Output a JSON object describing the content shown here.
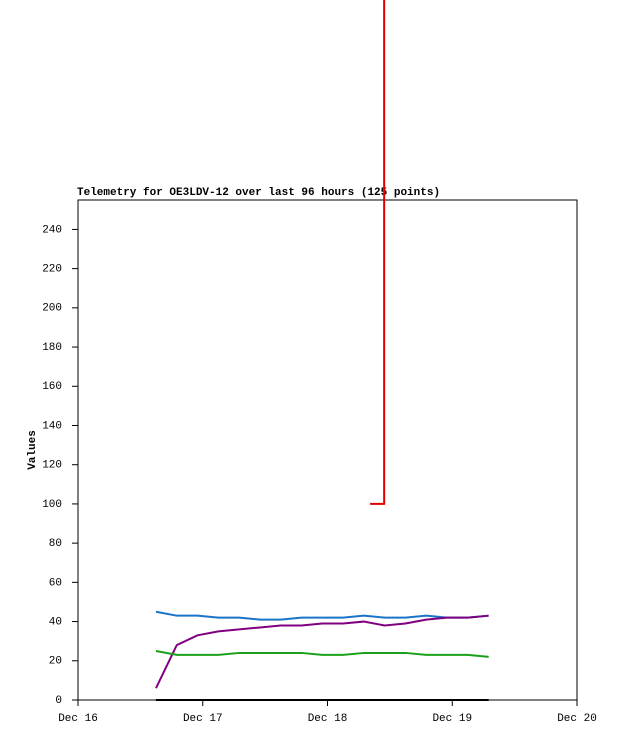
{
  "chart_data": {
    "type": "line",
    "title": "Telemetry for OE3LDV-12 over last 96 hours (125 points)",
    "y_label": "Values",
    "xlim": [
      0,
      96
    ],
    "xticks": [
      {
        "value": 0,
        "label": "Dec 16"
      },
      {
        "value": 24,
        "label": "Dec 17"
      },
      {
        "value": 48,
        "label": "Dec 18"
      },
      {
        "value": 72,
        "label": "Dec 19"
      },
      {
        "value": 96,
        "label": "Dec 20"
      }
    ],
    "ylim": [
      0,
      255
    ],
    "yticks": [
      0,
      20,
      40,
      60,
      80,
      100,
      120,
      140,
      160,
      180,
      200,
      220,
      240
    ],
    "x": [
      15,
      19,
      23,
      27,
      31,
      35,
      39,
      43,
      47,
      51,
      55,
      59,
      63,
      67,
      71,
      75,
      79
    ],
    "series": [
      {
        "color": "#1a74c8",
        "values": [
          45,
          43,
          43,
          42,
          42,
          41,
          41,
          42,
          42,
          42,
          43,
          42,
          42,
          43,
          42,
          42,
          43
        ]
      },
      {
        "color": "#800080",
        "values": [
          6,
          28,
          33,
          35,
          36,
          37,
          38,
          38,
          39,
          39,
          40,
          38,
          39,
          41,
          42,
          42,
          43
        ]
      },
      {
        "color": "#1aa01a",
        "values": [
          25,
          23,
          23,
          23,
          24,
          24,
          24,
          24,
          23,
          23,
          24,
          24,
          24,
          23,
          23,
          23,
          22
        ]
      },
      {
        "color": "#000000",
        "values": [
          0,
          0,
          0,
          0,
          0,
          0,
          0,
          0,
          0,
          0,
          0,
          0,
          0,
          0,
          0,
          0,
          0
        ]
      },
      {
        "color": "#e00000",
        "x": [
          56.2,
          58.9,
          58.9
        ],
        "values": [
          100,
          100,
          357
        ]
      }
    ]
  }
}
